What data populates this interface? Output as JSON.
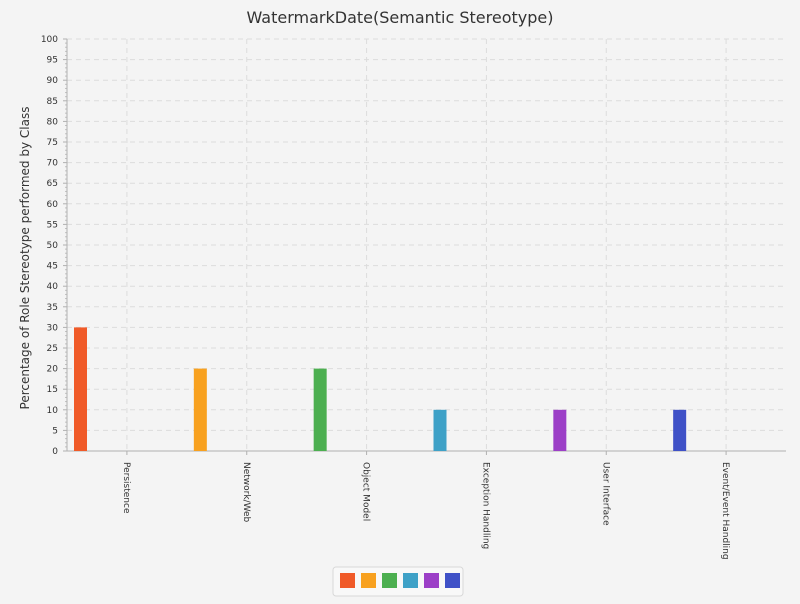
{
  "chart_data": {
    "type": "bar",
    "title": "WatermarkDate(Semantic Stereotype)",
    "xlabel": "",
    "ylabel": "Percentage of Role Stereotype performed by Class",
    "ylim": [
      0,
      100
    ],
    "ytick_step": 5,
    "yticks": [
      "0",
      "5",
      "10",
      "15",
      "20",
      "25",
      "30",
      "35",
      "40",
      "45",
      "50",
      "55",
      "60",
      "65",
      "70",
      "75",
      "80",
      "85",
      "90",
      "95",
      "100"
    ],
    "grid": true,
    "legend_position": "bottom",
    "categories": [
      "Persistence",
      "Network/Web",
      "Object Model",
      "Exception Handling",
      "User Interface",
      "Event/Event Handling"
    ],
    "values": [
      30,
      20,
      20,
      10,
      10,
      10
    ],
    "colors": [
      "#f05a28",
      "#f8a11f",
      "#4caf50",
      "#3ea1c7",
      "#9c3fc7",
      "#3f51c7"
    ]
  }
}
